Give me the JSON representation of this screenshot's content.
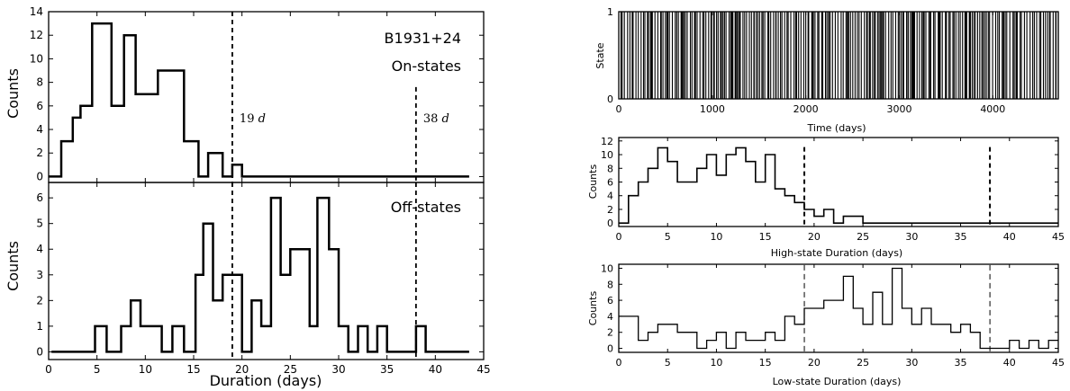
{
  "chart_data": [
    {
      "type": "step",
      "annotation": "B1931+24",
      "title": "On-states",
      "xlabel": "",
      "ylabel": "Counts",
      "xlim": [
        0,
        45
      ],
      "ylim": [
        -0.5,
        14
      ],
      "yticks": [
        0,
        2,
        4,
        6,
        8,
        10,
        12,
        14
      ],
      "x_edges": [
        0,
        1.3,
        2.5,
        3.3,
        4.5,
        6.5,
        7.8,
        9,
        11.3,
        14,
        15.5,
        16.5,
        18,
        19,
        20,
        43.5
      ],
      "counts": [
        0,
        3,
        5,
        6,
        13,
        6,
        12,
        7,
        9,
        3,
        0,
        2,
        0,
        1,
        0,
        0
      ],
      "vlines": [
        {
          "x": 19,
          "label": "19",
          "unit": "d"
        },
        {
          "x": 38,
          "label": "38",
          "unit": "d"
        }
      ]
    },
    {
      "type": "step",
      "title": "Off-states",
      "xlabel": "Duration (days)",
      "ylabel": "Counts",
      "xlim": [
        0,
        45
      ],
      "ylim": [
        -0.3,
        6.6
      ],
      "yticks": [
        0,
        1,
        2,
        3,
        4,
        5,
        6
      ],
      "xticks": [
        0,
        5,
        10,
        15,
        20,
        25,
        30,
        35,
        40,
        45
      ],
      "x_edges": [
        0.3,
        4.8,
        6,
        7.5,
        8.5,
        9.5,
        11.7,
        12.8,
        14,
        15.2,
        16,
        17,
        18,
        20,
        21,
        22,
        23,
        24,
        25,
        27,
        27.8,
        29,
        30,
        31,
        32,
        33,
        34,
        35,
        36,
        38,
        39,
        40,
        43.5
      ],
      "counts": [
        0,
        1,
        0,
        1,
        2,
        1,
        0,
        1,
        0,
        3,
        5,
        2,
        3,
        0,
        2,
        1,
        6,
        3,
        4,
        1,
        6,
        4,
        1,
        0,
        1,
        0,
        1,
        0,
        0,
        1,
        0,
        0
      ],
      "vlines": [
        {
          "x": 19
        },
        {
          "x": 38
        }
      ]
    },
    {
      "type": "step",
      "xlabel": "Time (days)",
      "ylabel": "State",
      "xlim": [
        0,
        4700
      ],
      "ylim": [
        0,
        1
      ],
      "yticks": [
        0,
        1
      ],
      "xticks": [
        0,
        1000,
        2000,
        3000,
        4000
      ],
      "switch_count": 240
    },
    {
      "type": "step",
      "xlabel": "High-state Duration (days)",
      "ylabel": "Counts",
      "xlim": [
        0,
        45
      ],
      "ylim": [
        -0.5,
        12.5
      ],
      "yticks": [
        0,
        2,
        4,
        6,
        8,
        10,
        12
      ],
      "xticks": [
        0,
        5,
        10,
        15,
        20,
        25,
        30,
        35,
        40,
        45
      ],
      "x_edges": [
        0,
        1,
        2,
        3,
        4,
        5,
        6,
        8,
        9,
        10,
        11,
        12,
        13,
        14,
        15,
        16,
        17,
        18,
        19,
        20,
        21,
        22,
        23,
        24,
        25,
        45
      ],
      "counts": [
        0,
        4,
        6,
        8,
        11,
        9,
        6,
        8,
        10,
        7,
        10,
        11,
        9,
        6,
        10,
        5,
        4,
        3,
        2,
        1,
        2,
        0,
        1,
        1,
        0,
        0
      ],
      "vlines": [
        {
          "x": 19
        },
        {
          "x": 38
        }
      ]
    },
    {
      "type": "step",
      "xlabel": "Low-state Duration (days)",
      "ylabel": "Counts",
      "xlim": [
        0,
        45
      ],
      "ylim": [
        -0.5,
        10.5
      ],
      "yticks": [
        0,
        2,
        4,
        6,
        8,
        10
      ],
      "xticks": [
        0,
        5,
        10,
        15,
        20,
        25,
        30,
        35,
        40,
        45
      ],
      "x_edges": [
        0,
        2,
        3,
        4,
        5,
        6,
        7,
        8,
        9,
        10,
        11,
        12,
        13,
        14,
        15,
        16,
        17,
        18,
        19,
        21,
        23,
        24,
        25,
        26,
        27,
        28,
        29,
        30,
        31,
        32,
        34,
        35,
        36,
        37,
        40,
        41,
        42,
        43,
        44,
        45
      ],
      "counts": [
        4,
        1,
        2,
        3,
        3,
        2,
        2,
        0,
        1,
        2,
        0,
        2,
        1,
        1,
        2,
        1,
        4,
        3,
        5,
        6,
        9,
        5,
        3,
        7,
        3,
        10,
        5,
        3,
        5,
        3,
        2,
        3,
        2,
        0,
        1,
        0,
        1,
        0,
        1
      ],
      "vlines": [
        {
          "x": 19
        },
        {
          "x": 38
        }
      ]
    }
  ]
}
